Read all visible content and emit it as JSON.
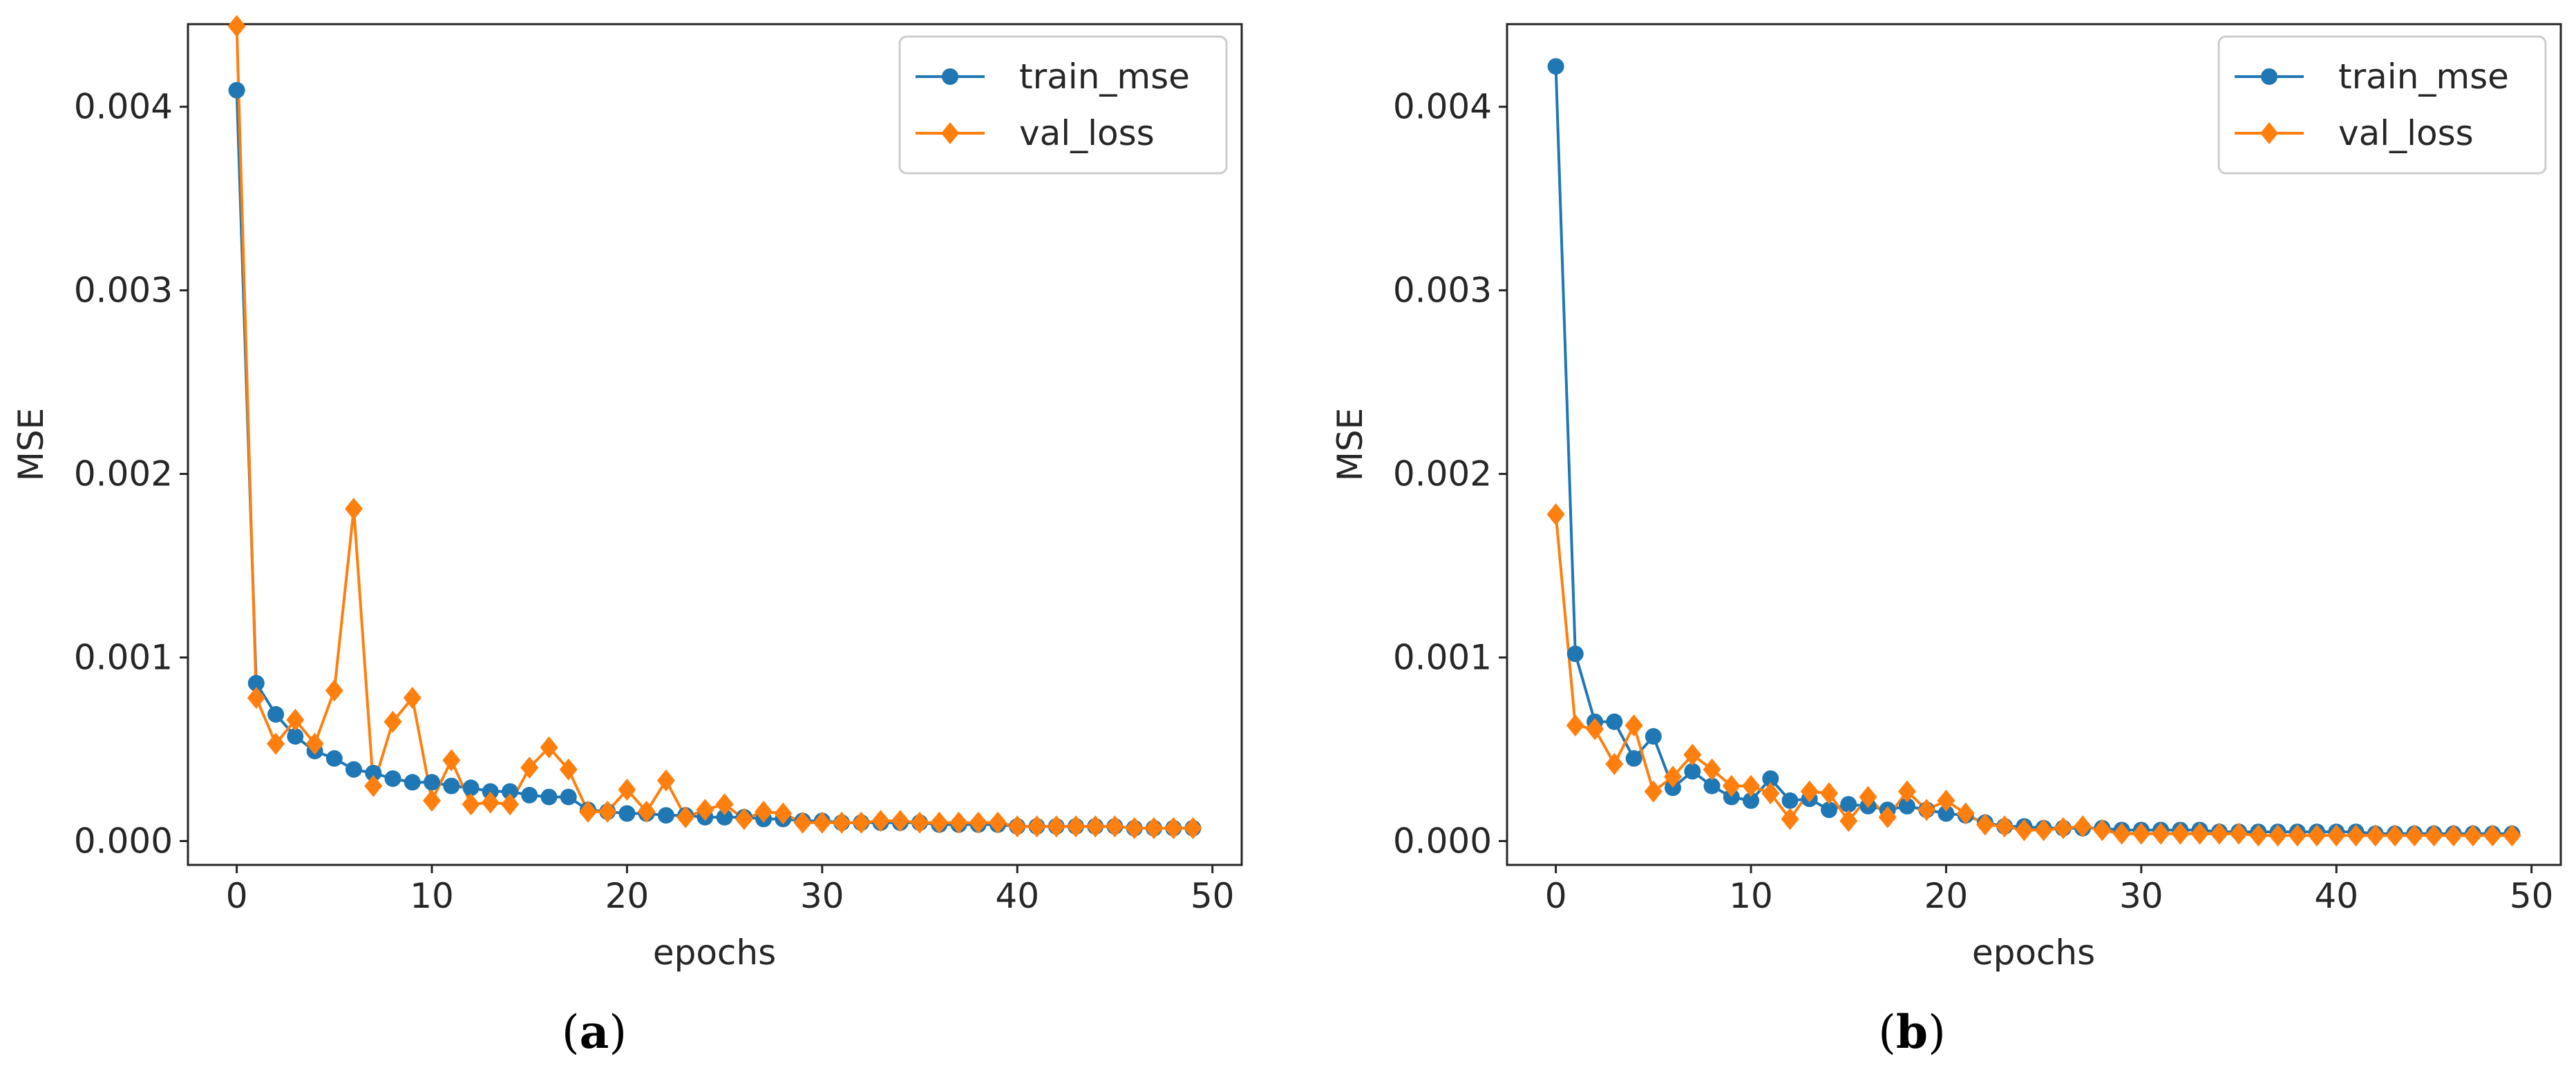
{
  "chart_data": [
    {
      "type": "line",
      "panel_label": "a",
      "xlabel": "epochs",
      "ylabel": "MSE",
      "xlim": [
        -2.5,
        51.5
      ],
      "ylim": [
        -0.00013,
        0.00445
      ],
      "xticks": [
        0,
        10,
        20,
        30,
        40,
        50
      ],
      "xtick_labels": [
        "0",
        "10",
        "20",
        "30",
        "40",
        "50"
      ],
      "yticks": [
        0.0,
        0.001,
        0.002,
        0.003,
        0.004
      ],
      "ytick_labels": [
        "0.000",
        "0.001",
        "0.002",
        "0.003",
        "0.004"
      ],
      "legend_position": "upper right",
      "grid": false,
      "x": [
        0,
        1,
        2,
        3,
        4,
        5,
        6,
        7,
        8,
        9,
        10,
        11,
        12,
        13,
        14,
        15,
        16,
        17,
        18,
        19,
        20,
        21,
        22,
        23,
        24,
        25,
        26,
        27,
        28,
        29,
        30,
        31,
        32,
        33,
        34,
        35,
        36,
        37,
        38,
        39,
        40,
        41,
        42,
        43,
        44,
        45,
        46,
        47,
        48,
        49
      ],
      "series": [
        {
          "name": "train_mse",
          "color": "#1f77b4",
          "marker": "circle",
          "values": [
            0.00409,
            0.00086,
            0.00069,
            0.00057,
            0.00049,
            0.00045,
            0.00039,
            0.00037,
            0.00034,
            0.00032,
            0.00032,
            0.0003,
            0.00029,
            0.00027,
            0.00027,
            0.00025,
            0.00024,
            0.00024,
            0.00017,
            0.00016,
            0.00015,
            0.00015,
            0.00014,
            0.00014,
            0.00013,
            0.00013,
            0.00013,
            0.00012,
            0.00012,
            0.00011,
            0.00011,
            0.0001,
            0.0001,
            0.0001,
            0.0001,
            0.0001,
            9e-05,
            9e-05,
            9e-05,
            9e-05,
            8e-05,
            8e-05,
            8e-05,
            8e-05,
            8e-05,
            8e-05,
            7e-05,
            7e-05,
            7e-05,
            7e-05
          ]
        },
        {
          "name": "val_loss",
          "color": "#ff7f0e",
          "marker": "diamond",
          "values": [
            0.00444,
            0.00078,
            0.00053,
            0.00066,
            0.00053,
            0.00082,
            0.00181,
            0.0003,
            0.00065,
            0.00078,
            0.00022,
            0.00044,
            0.0002,
            0.00021,
            0.0002,
            0.0004,
            0.00051,
            0.00039,
            0.00016,
            0.00016,
            0.00028,
            0.00016,
            0.00033,
            0.00013,
            0.00017,
            0.0002,
            0.00012,
            0.00016,
            0.00015,
            0.0001,
            0.0001,
            0.0001,
            0.0001,
            0.00011,
            0.00011,
            0.0001,
            0.0001,
            0.0001,
            0.0001,
            0.0001,
            8e-05,
            8e-05,
            8e-05,
            8e-05,
            8e-05,
            8e-05,
            7e-05,
            7e-05,
            7e-05,
            7e-05
          ]
        }
      ]
    },
    {
      "type": "line",
      "panel_label": "b",
      "xlabel": "epochs",
      "ylabel": "MSE",
      "xlim": [
        -2.5,
        51.5
      ],
      "ylim": [
        -0.00013,
        0.00445
      ],
      "xticks": [
        0,
        10,
        20,
        30,
        40,
        50
      ],
      "xtick_labels": [
        "0",
        "10",
        "20",
        "30",
        "40",
        "50"
      ],
      "yticks": [
        0.0,
        0.001,
        0.002,
        0.003,
        0.004
      ],
      "ytick_labels": [
        "0.000",
        "0.001",
        "0.002",
        "0.003",
        "0.004"
      ],
      "legend_position": "upper right",
      "grid": false,
      "x": [
        0,
        1,
        2,
        3,
        4,
        5,
        6,
        7,
        8,
        9,
        10,
        11,
        12,
        13,
        14,
        15,
        16,
        17,
        18,
        19,
        20,
        21,
        22,
        23,
        24,
        25,
        26,
        27,
        28,
        29,
        30,
        31,
        32,
        33,
        34,
        35,
        36,
        37,
        38,
        39,
        40,
        41,
        42,
        43,
        44,
        45,
        46,
        47,
        48,
        49
      ],
      "series": [
        {
          "name": "train_mse",
          "color": "#1f77b4",
          "marker": "circle",
          "values": [
            0.00422,
            0.00102,
            0.00065,
            0.00065,
            0.00045,
            0.00057,
            0.00029,
            0.00038,
            0.0003,
            0.00024,
            0.00022,
            0.00034,
            0.00022,
            0.00023,
            0.00017,
            0.0002,
            0.00019,
            0.00017,
            0.00019,
            0.00017,
            0.00015,
            0.00014,
            0.0001,
            8e-05,
            8e-05,
            7e-05,
            7e-05,
            7e-05,
            7e-05,
            6e-05,
            6e-05,
            6e-05,
            6e-05,
            6e-05,
            5e-05,
            5e-05,
            5e-05,
            5e-05,
            5e-05,
            5e-05,
            5e-05,
            5e-05,
            4e-05,
            4e-05,
            4e-05,
            4e-05,
            4e-05,
            4e-05,
            4e-05,
            4e-05
          ]
        },
        {
          "name": "val_loss",
          "color": "#ff7f0e",
          "marker": "diamond",
          "values": [
            0.00178,
            0.00063,
            0.00061,
            0.00042,
            0.00063,
            0.00027,
            0.00035,
            0.00047,
            0.00039,
            0.0003,
            0.0003,
            0.00026,
            0.00012,
            0.00027,
            0.00026,
            0.00011,
            0.00024,
            0.00013,
            0.00027,
            0.00017,
            0.00022,
            0.00015,
            9e-05,
            8e-05,
            6e-05,
            6e-05,
            7e-05,
            8e-05,
            6e-05,
            4e-05,
            4e-05,
            4e-05,
            4e-05,
            4e-05,
            4e-05,
            4e-05,
            3e-05,
            3e-05,
            3e-05,
            3e-05,
            3e-05,
            3e-05,
            3e-05,
            3e-05,
            3e-05,
            3e-05,
            3e-05,
            3e-05,
            3e-05,
            3e-05
          ]
        }
      ]
    }
  ]
}
